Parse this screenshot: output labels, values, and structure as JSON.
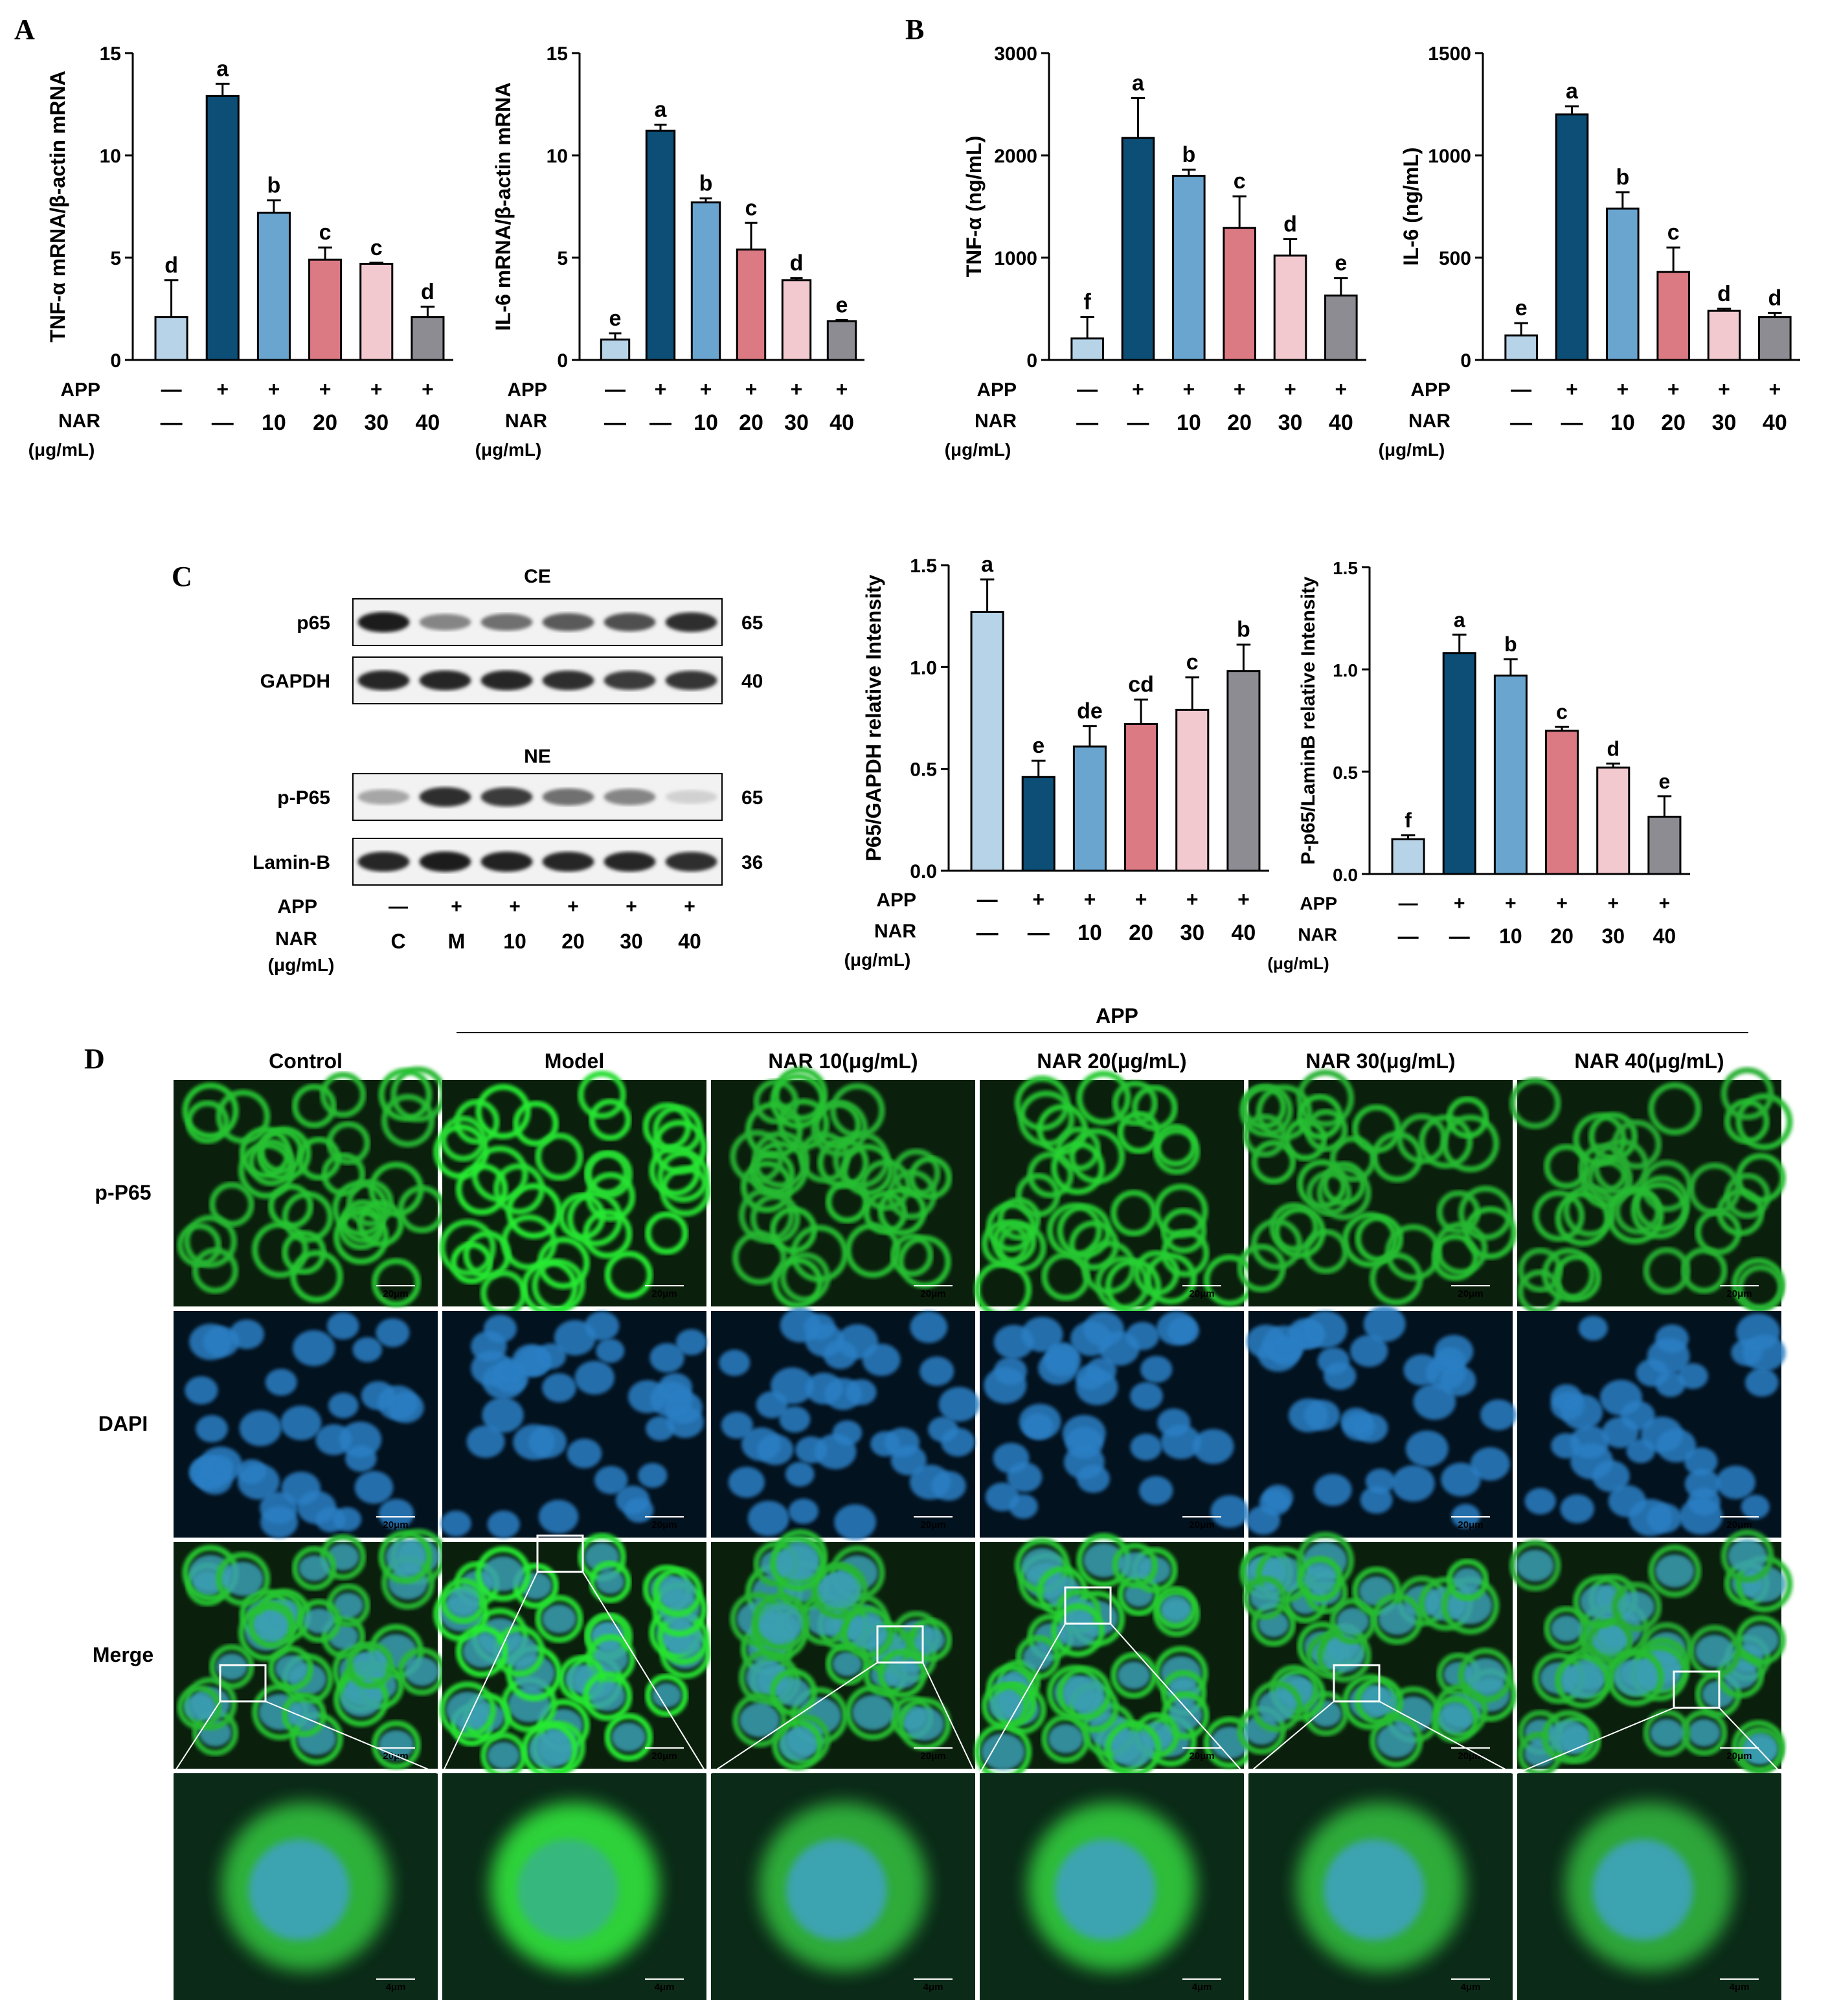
{
  "colors": {
    "control": "#b7d3e8",
    "model": "#0d4e76",
    "nar10": "#6aa5cf",
    "nar20": "#dc7a84",
    "nar30": "#f3c9d0",
    "nar40": "#8d8c93",
    "axis": "#000000",
    "green": "#2ca02c",
    "blue": "#1a6fb8"
  },
  "panels": {
    "A": "A",
    "B": "B",
    "C": "C",
    "D": "D"
  },
  "treatments": {
    "app_label": "APP",
    "nar_label": "NAR",
    "unit_label": "(μg/mL)",
    "app_signs": [
      "—",
      "+",
      "+",
      "+",
      "+",
      "+"
    ],
    "nar_signs": [
      "—",
      "—",
      "10",
      "20",
      "30",
      "40"
    ]
  },
  "chart_data": [
    {
      "id": "tnf-mrna",
      "type": "bar",
      "ylabel": "TNF-α mRNA/β-actin mRNA",
      "ylim": [
        0,
        15
      ],
      "yticks": [
        "0",
        "5",
        "10",
        "15"
      ],
      "categories": [
        "Control",
        "APP",
        "NAR 10",
        "NAR 20",
        "NAR 30",
        "NAR 40"
      ],
      "values": [
        2.1,
        12.9,
        7.2,
        4.9,
        4.7,
        2.1
      ],
      "errors": [
        1.8,
        0.6,
        0.6,
        0.6,
        0.05,
        0.5
      ],
      "letters": [
        "d",
        "a",
        "b",
        "c",
        "c",
        "d"
      ]
    },
    {
      "id": "il6-mrna",
      "type": "bar",
      "ylabel": "IL-6 mRNA/β-actin mRNA",
      "ylim": [
        0,
        15
      ],
      "yticks": [
        "0",
        "5",
        "10",
        "15"
      ],
      "categories": [
        "Control",
        "APP",
        "NAR 10",
        "NAR 20",
        "NAR 30",
        "NAR 40"
      ],
      "values": [
        1.0,
        11.2,
        7.7,
        5.4,
        3.9,
        1.9
      ],
      "errors": [
        0.3,
        0.3,
        0.2,
        1.3,
        0.1,
        0.05
      ],
      "letters": [
        "e",
        "a",
        "b",
        "c",
        "d",
        "e"
      ]
    },
    {
      "id": "tnf-protein",
      "type": "bar",
      "ylabel": "TNF-α (ng/mL)",
      "ylim": [
        0,
        3000
      ],
      "yticks": [
        "0",
        "1000",
        "2000",
        "3000"
      ],
      "categories": [
        "Control",
        "APP",
        "NAR 10",
        "NAR 20",
        "NAR 30",
        "NAR 40"
      ],
      "values": [
        210,
        2170,
        1800,
        1290,
        1020,
        630
      ],
      "errors": [
        210,
        390,
        60,
        310,
        160,
        170
      ],
      "letters": [
        "f",
        "a",
        "b",
        "c",
        "d",
        "e"
      ]
    },
    {
      "id": "il6-protein",
      "type": "bar",
      "ylabel": "IL-6 (ng/mL)",
      "ylim": [
        0,
        1500
      ],
      "yticks": [
        "0",
        "500",
        "1000",
        "1500"
      ],
      "categories": [
        "Control",
        "APP",
        "NAR 10",
        "NAR 20",
        "NAR 30",
        "NAR 40"
      ],
      "values": [
        120,
        1200,
        740,
        430,
        240,
        210
      ],
      "errors": [
        60,
        40,
        80,
        120,
        10,
        20
      ],
      "letters": [
        "e",
        "a",
        "b",
        "c",
        "d",
        "d"
      ]
    },
    {
      "id": "p65-gapdh",
      "type": "bar",
      "ylabel": "P65/GAPDH relative Intensity",
      "ylim": [
        0,
        1.5
      ],
      "yticks": [
        "0.0",
        "0.5",
        "1.0",
        "1.5"
      ],
      "categories": [
        "Control",
        "APP",
        "NAR 10",
        "NAR 20",
        "NAR 30",
        "NAR 40"
      ],
      "values": [
        1.27,
        0.46,
        0.61,
        0.72,
        0.79,
        0.98
      ],
      "errors": [
        0.16,
        0.08,
        0.1,
        0.12,
        0.16,
        0.13
      ],
      "letters": [
        "a",
        "e",
        "de",
        "cd",
        "c",
        "b"
      ]
    },
    {
      "id": "pp65-laminb",
      "type": "bar",
      "ylabel": "P-p65/LaminB relative Intensity",
      "ylim": [
        0,
        1.5
      ],
      "yticks": [
        "0.0",
        "0.5",
        "1.0",
        "1.5"
      ],
      "categories": [
        "Control",
        "APP",
        "NAR 10",
        "NAR 20",
        "NAR 30",
        "NAR 40"
      ],
      "values": [
        0.17,
        1.08,
        0.97,
        0.7,
        0.52,
        0.28
      ],
      "errors": [
        0.02,
        0.09,
        0.08,
        0.02,
        0.02,
        0.1
      ],
      "letters": [
        "f",
        "a",
        "b",
        "c",
        "d",
        "e"
      ]
    }
  ],
  "blot": {
    "ce_title": "CE",
    "ne_title": "NE",
    "rows": [
      {
        "label": "p65",
        "kda": "65",
        "intensity": [
          0.95,
          0.45,
          0.55,
          0.65,
          0.7,
          0.85
        ]
      },
      {
        "label": "GAPDH",
        "kda": "40",
        "intensity": [
          0.9,
          0.9,
          0.9,
          0.85,
          0.8,
          0.82
        ]
      },
      {
        "label": "p-P65",
        "kda": "65",
        "intensity": [
          0.3,
          0.85,
          0.8,
          0.55,
          0.45,
          0.1
        ]
      },
      {
        "label": "Lamin-B",
        "kda": "36",
        "intensity": [
          0.9,
          0.95,
          0.92,
          0.9,
          0.9,
          0.85
        ]
      }
    ],
    "app_signs": [
      "—",
      "+",
      "+",
      "+",
      "+",
      "+"
    ],
    "lane_labels": [
      "C",
      "M",
      "10",
      "20",
      "30",
      "40"
    ],
    "nar_label": "NAR",
    "unit_label": "(μg/mL)",
    "app_label": "APP"
  },
  "micrographs": {
    "group_label": "APP",
    "columns": [
      "Control",
      "Model",
      "NAR 10(μg/mL)",
      "NAR 20(μg/mL)",
      "NAR 30(μg/mL)",
      "NAR 40(μg/mL)"
    ],
    "rows": [
      "p-P65",
      "DAPI",
      "Merge",
      ""
    ],
    "scale_main": "20μm",
    "scale_zoom": "4μm",
    "green_intensity": [
      0.6,
      0.9,
      0.55,
      0.7,
      0.55,
      0.5
    ]
  }
}
